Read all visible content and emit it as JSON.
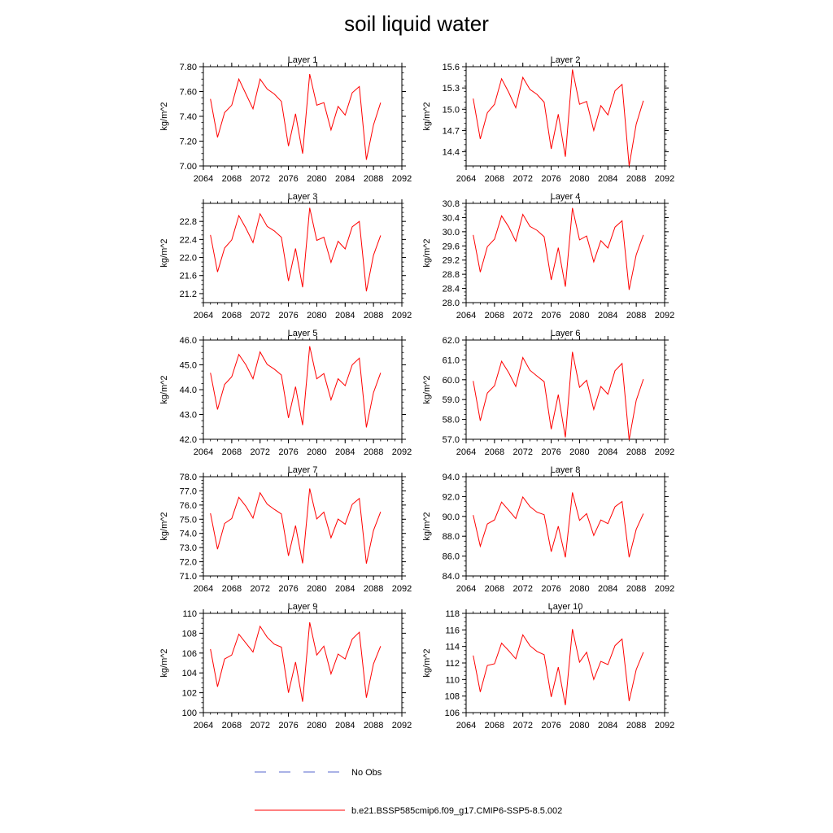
{
  "title": "soil liquid water",
  "colors": {
    "model": "#ff0000",
    "obs": "#5566cc",
    "axis": "#000000"
  },
  "legend": [
    {
      "label": "No Obs",
      "style": "dashed",
      "color": "#5566cc"
    },
    {
      "label": "b.e21.BSSP585cmip6.f09_g17.CMIP6-SSP5-8.5.002",
      "style": "solid",
      "color": "#ff0000"
    }
  ],
  "chart_data": [
    {
      "type": "line",
      "title": "Layer 1",
      "ylabel": "kg/m^2",
      "xlim": [
        2064,
        2092
      ],
      "ylim": [
        7.0,
        7.8
      ],
      "xticks": [
        "2064",
        "2068",
        "2072",
        "2076",
        "2080",
        "2084",
        "2088",
        "2092"
      ],
      "yticks": [
        "7.00",
        "7.20",
        "7.40",
        "7.60",
        "7.80"
      ],
      "series": [
        {
          "x": [
            2065,
            2066,
            2067,
            2068,
            2069,
            2070,
            2071,
            2072,
            2073,
            2074,
            2075,
            2076,
            2077,
            2078,
            2079,
            2080,
            2081,
            2082,
            2083,
            2084,
            2085,
            2086,
            2087,
            2088,
            2089
          ],
          "values": [
            7.54,
            7.23,
            7.43,
            7.49,
            7.7,
            7.58,
            7.46,
            7.7,
            7.62,
            7.58,
            7.52,
            7.16,
            7.42,
            7.1,
            7.74,
            7.49,
            7.51,
            7.29,
            7.48,
            7.41,
            7.59,
            7.64,
            7.05,
            7.33,
            7.51
          ]
        }
      ]
    },
    {
      "type": "line",
      "title": "Layer 2",
      "ylabel": "kg/m^2",
      "xlim": [
        2064,
        2092
      ],
      "ylim": [
        14.2,
        15.6
      ],
      "xticks": [
        "2064",
        "2068",
        "2072",
        "2076",
        "2080",
        "2084",
        "2088",
        "2092"
      ],
      "yticks": [
        "14.4",
        "14.7",
        "15.0",
        "15.3",
        "15.6"
      ],
      "series": [
        {
          "x": [
            2065,
            2066,
            2067,
            2068,
            2069,
            2070,
            2071,
            2072,
            2073,
            2074,
            2075,
            2076,
            2077,
            2078,
            2079,
            2080,
            2081,
            2082,
            2083,
            2084,
            2085,
            2086,
            2087,
            2088,
            2089
          ],
          "values": [
            15.15,
            14.58,
            14.95,
            15.07,
            15.43,
            15.24,
            15.02,
            15.45,
            15.28,
            15.21,
            15.1,
            14.44,
            14.93,
            14.33,
            15.56,
            15.07,
            15.11,
            14.7,
            15.05,
            14.92,
            15.26,
            15.35,
            14.2,
            14.79,
            15.12
          ]
        }
      ]
    },
    {
      "type": "line",
      "title": "Layer 3",
      "ylabel": "kg/m^2",
      "xlim": [
        2064,
        2092
      ],
      "ylim": [
        21.0,
        23.2
      ],
      "xticks": [
        "2064",
        "2068",
        "2072",
        "2076",
        "2080",
        "2084",
        "2088",
        "2092"
      ],
      "yticks": [
        "21.2",
        "21.6",
        "22.0",
        "22.4",
        "22.8"
      ],
      "series": [
        {
          "x": [
            2065,
            2066,
            2067,
            2068,
            2069,
            2070,
            2071,
            2072,
            2073,
            2074,
            2075,
            2076,
            2077,
            2078,
            2079,
            2080,
            2081,
            2082,
            2083,
            2084,
            2085,
            2086,
            2087,
            2088,
            2089
          ],
          "values": [
            22.5,
            21.68,
            22.21,
            22.39,
            22.93,
            22.65,
            22.33,
            22.97,
            22.69,
            22.59,
            22.45,
            21.48,
            22.2,
            21.34,
            23.1,
            22.38,
            22.45,
            21.89,
            22.36,
            22.19,
            22.68,
            22.8,
            21.25,
            22.05,
            22.49
          ]
        }
      ]
    },
    {
      "type": "line",
      "title": "Layer 4",
      "ylabel": "kg/m^2",
      "xlim": [
        2064,
        2092
      ],
      "ylim": [
        28.0,
        30.8
      ],
      "xticks": [
        "2064",
        "2068",
        "2072",
        "2076",
        "2080",
        "2084",
        "2088",
        "2092"
      ],
      "yticks": [
        "28.0",
        "28.4",
        "28.8",
        "29.2",
        "29.6",
        "30.0",
        "30.4",
        "30.8"
      ],
      "series": [
        {
          "x": [
            2065,
            2066,
            2067,
            2068,
            2069,
            2070,
            2071,
            2072,
            2073,
            2074,
            2075,
            2076,
            2077,
            2078,
            2079,
            2080,
            2081,
            2082,
            2083,
            2084,
            2085,
            2086,
            2087,
            2088,
            2089
          ],
          "values": [
            29.91,
            28.86,
            29.58,
            29.79,
            30.45,
            30.14,
            29.73,
            30.49,
            30.15,
            30.04,
            29.86,
            28.64,
            29.55,
            28.45,
            30.67,
            29.77,
            29.88,
            29.15,
            29.75,
            29.54,
            30.13,
            30.31,
            28.36,
            29.35,
            29.91
          ]
        }
      ]
    },
    {
      "type": "line",
      "title": "Layer 5",
      "ylabel": "kg/m^2",
      "xlim": [
        2064,
        2092
      ],
      "ylim": [
        42.0,
        46.0
      ],
      "xticks": [
        "2064",
        "2068",
        "2072",
        "2076",
        "2080",
        "2084",
        "2088",
        "2092"
      ],
      "yticks": [
        "42.0",
        "43.0",
        "44.0",
        "45.0",
        "46.0"
      ],
      "series": [
        {
          "x": [
            2065,
            2066,
            2067,
            2068,
            2069,
            2070,
            2071,
            2072,
            2073,
            2074,
            2075,
            2076,
            2077,
            2078,
            2079,
            2080,
            2081,
            2082,
            2083,
            2084,
            2085,
            2086,
            2087,
            2088,
            2089
          ],
          "values": [
            44.68,
            43.2,
            44.21,
            44.52,
            45.42,
            45.0,
            44.44,
            45.52,
            45.02,
            44.83,
            44.59,
            42.86,
            44.12,
            42.57,
            45.75,
            44.44,
            44.65,
            43.59,
            44.44,
            44.16,
            45.0,
            45.27,
            42.48,
            43.88,
            44.68
          ]
        }
      ]
    },
    {
      "type": "line",
      "title": "Layer 6",
      "ylabel": "kg/m^2",
      "xlim": [
        2064,
        2092
      ],
      "ylim": [
        57.0,
        62.0
      ],
      "xticks": [
        "2064",
        "2068",
        "2072",
        "2076",
        "2080",
        "2084",
        "2088",
        "2092"
      ],
      "yticks": [
        "57.0",
        "58.0",
        "59.0",
        "60.0",
        "61.0",
        "62.0"
      ],
      "series": [
        {
          "x": [
            2065,
            2066,
            2067,
            2068,
            2069,
            2070,
            2071,
            2072,
            2073,
            2074,
            2075,
            2076,
            2077,
            2078,
            2079,
            2080,
            2081,
            2082,
            2083,
            2084,
            2085,
            2086,
            2087,
            2088,
            2089
          ],
          "values": [
            59.94,
            57.93,
            59.33,
            59.7,
            60.93,
            60.36,
            59.66,
            61.12,
            60.48,
            60.19,
            59.9,
            57.51,
            59.25,
            57.1,
            61.4,
            59.62,
            59.97,
            58.5,
            59.66,
            59.27,
            60.45,
            60.82,
            56.97,
            58.96,
            60.03
          ]
        }
      ]
    },
    {
      "type": "line",
      "title": "Layer 7",
      "ylabel": "kg/m^2",
      "xlim": [
        2064,
        2092
      ],
      "ylim": [
        71.0,
        78.0
      ],
      "xticks": [
        "2064",
        "2068",
        "2072",
        "2076",
        "2080",
        "2084",
        "2088",
        "2092"
      ],
      "yticks": [
        "71.0",
        "72.0",
        "73.0",
        "74.0",
        "75.0",
        "76.0",
        "77.0",
        "78.0"
      ],
      "series": [
        {
          "x": [
            2065,
            2066,
            2067,
            2068,
            2069,
            2070,
            2071,
            2072,
            2073,
            2074,
            2075,
            2076,
            2077,
            2078,
            2079,
            2080,
            2081,
            2082,
            2083,
            2084,
            2085,
            2086,
            2087,
            2088,
            2089
          ],
          "values": [
            75.42,
            72.89,
            74.7,
            75.05,
            76.55,
            75.91,
            75.08,
            76.87,
            76.07,
            75.7,
            75.37,
            72.42,
            74.55,
            71.89,
            77.17,
            75.02,
            75.5,
            73.69,
            75.01,
            74.65,
            76.05,
            76.47,
            71.87,
            74.2,
            75.52
          ]
        }
      ]
    },
    {
      "type": "line",
      "title": "Layer 8",
      "ylabel": "kg/m^2",
      "xlim": [
        2064,
        2092
      ],
      "ylim": [
        84.0,
        94.0
      ],
      "xticks": [
        "2064",
        "2068",
        "2072",
        "2076",
        "2080",
        "2084",
        "2088",
        "2092"
      ],
      "yticks": [
        "84.0",
        "86.0",
        "88.0",
        "90.0",
        "92.0",
        "94.0"
      ],
      "series": [
        {
          "x": [
            2065,
            2066,
            2067,
            2068,
            2069,
            2070,
            2071,
            2072,
            2073,
            2074,
            2075,
            2076,
            2077,
            2078,
            2079,
            2080,
            2081,
            2082,
            2083,
            2084,
            2085,
            2086,
            2087,
            2088,
            2089
          ],
          "values": [
            90.13,
            86.99,
            89.24,
            89.65,
            91.44,
            90.62,
            89.78,
            91.96,
            90.99,
            90.43,
            90.17,
            86.44,
            89.01,
            85.87,
            92.41,
            89.6,
            90.28,
            88.07,
            89.64,
            89.27,
            90.97,
            91.5,
            85.88,
            88.7,
            90.28
          ]
        }
      ]
    },
    {
      "type": "line",
      "title": "Layer 9",
      "ylabel": "kg/m^2",
      "xlim": [
        2064,
        2092
      ],
      "ylim": [
        100,
        110
      ],
      "xticks": [
        "2064",
        "2068",
        "2072",
        "2076",
        "2080",
        "2084",
        "2088",
        "2092"
      ],
      "yticks": [
        "100",
        "102",
        "104",
        "106",
        "108",
        "110"
      ],
      "series": [
        {
          "x": [
            2065,
            2066,
            2067,
            2068,
            2069,
            2070,
            2071,
            2072,
            2073,
            2074,
            2075,
            2076,
            2077,
            2078,
            2079,
            2080,
            2081,
            2082,
            2083,
            2084,
            2085,
            2086,
            2087,
            2088,
            2089
          ],
          "values": [
            106.4,
            102.6,
            105.4,
            105.8,
            107.9,
            107.0,
            106.1,
            108.7,
            107.6,
            106.9,
            106.6,
            102.0,
            105.1,
            101.1,
            109.1,
            105.8,
            106.7,
            103.9,
            105.9,
            105.4,
            107.4,
            108.1,
            101.5,
            104.9,
            106.7
          ]
        }
      ]
    },
    {
      "type": "line",
      "title": "Layer 10",
      "ylabel": "kg/m^2",
      "xlim": [
        2064,
        2092
      ],
      "ylim": [
        106,
        118
      ],
      "xticks": [
        "2064",
        "2068",
        "2072",
        "2076",
        "2080",
        "2084",
        "2088",
        "2092"
      ],
      "yticks": [
        "106",
        "108",
        "110",
        "112",
        "114",
        "116",
        "118"
      ],
      "series": [
        {
          "x": [
            2065,
            2066,
            2067,
            2068,
            2069,
            2070,
            2071,
            2072,
            2073,
            2074,
            2075,
            2076,
            2077,
            2078,
            2079,
            2080,
            2081,
            2082,
            2083,
            2084,
            2085,
            2086,
            2087,
            2088,
            2089
          ],
          "values": [
            112.9,
            108.5,
            111.7,
            111.9,
            114.4,
            113.5,
            112.5,
            115.4,
            114.1,
            113.4,
            113.0,
            107.9,
            111.5,
            106.9,
            116.1,
            112.1,
            113.3,
            110.0,
            112.2,
            111.8,
            114.1,
            114.9,
            107.4,
            111.2,
            113.3
          ]
        }
      ]
    }
  ]
}
